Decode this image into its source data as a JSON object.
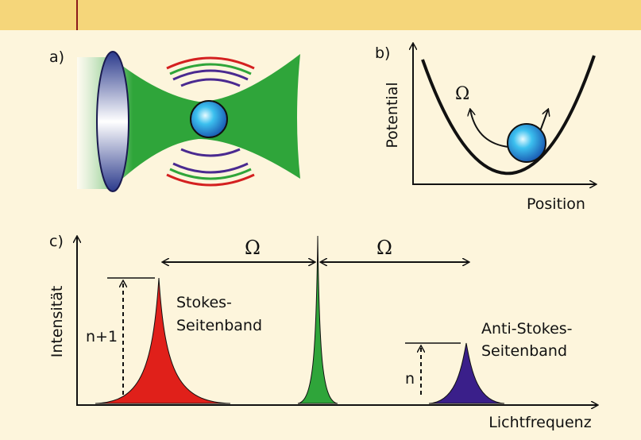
{
  "panel_a": {
    "label": "a)"
  },
  "panel_b": {
    "label": "b)",
    "y_axis": "Potential",
    "x_axis": "Position",
    "omega": "Ω"
  },
  "panel_c": {
    "label": "c)",
    "y_axis": "Intensität",
    "x_axis": "Lichtfrequenz",
    "omega_left": "Ω",
    "omega_right": "Ω",
    "stokes_height": "n+1",
    "stokes_line1": "Stokes-",
    "stokes_line2": "Seitenband",
    "anti_stokes_height": "n",
    "anti_stokes_line1": "Anti-Stokes-",
    "anti_stokes_line2": "Seitenband"
  }
}
